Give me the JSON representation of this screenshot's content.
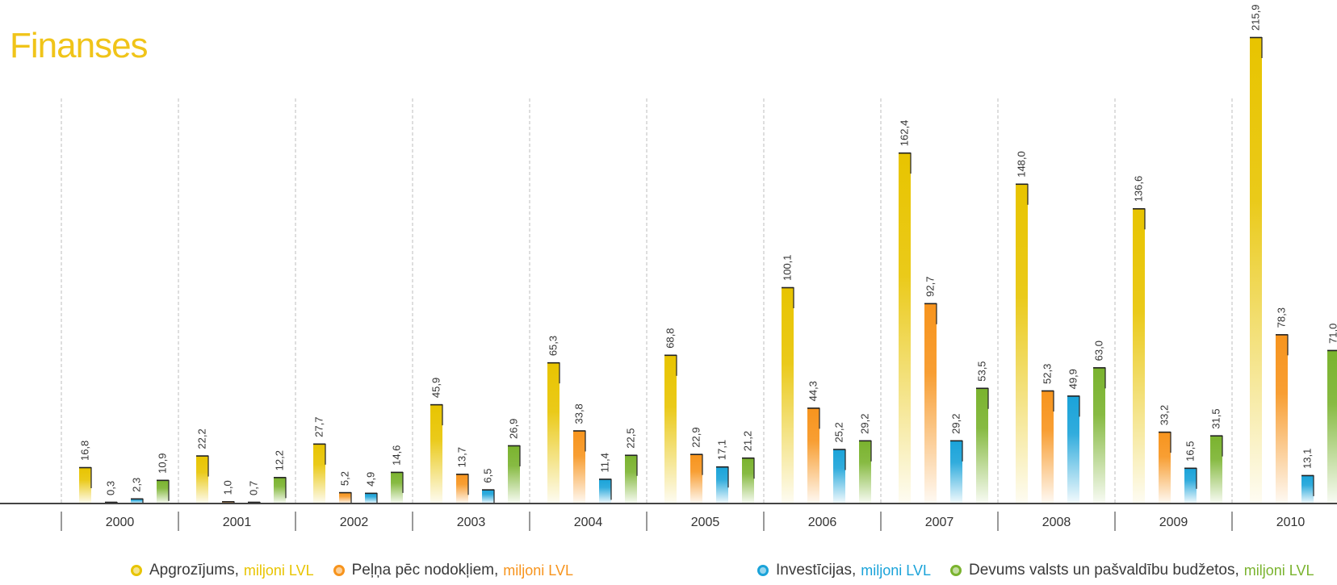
{
  "title": "Finanses",
  "chart_data": {
    "type": "bar",
    "categories": [
      "2000",
      "2001",
      "2002",
      "2003",
      "2004",
      "2005",
      "2006",
      "2007",
      "2008",
      "2009",
      "2010"
    ],
    "series": [
      {
        "name": "Apgrozījums",
        "color": "#e8c400",
        "values": [
          16.8,
          22.2,
          27.7,
          45.9,
          65.3,
          68.8,
          100.1,
          162.4,
          148.0,
          136.6,
          215.9
        ],
        "labels": [
          "16,8",
          "22,2",
          "27,7",
          "45,9",
          "65,3",
          "68,8",
          "100,1",
          "162,4",
          "148,0",
          "136,6",
          "215,9"
        ]
      },
      {
        "name": "Peļņa pēc nodokļiem",
        "color": "#f7941d",
        "values": [
          0.3,
          1.0,
          5.2,
          13.7,
          33.8,
          22.9,
          44.3,
          92.7,
          52.3,
          33.2,
          78.3
        ],
        "labels": [
          "0,3",
          "1,0",
          "5,2",
          "13,7",
          "33,8",
          "22,9",
          "44,3",
          "92,7",
          "52,3",
          "33,2",
          "78,3"
        ]
      },
      {
        "name": "Investīcijas",
        "color": "#1aa3d9",
        "values": [
          2.3,
          0.7,
          4.9,
          6.5,
          11.4,
          17.1,
          25.2,
          29.2,
          49.9,
          16.5,
          13.1
        ],
        "labels": [
          "2,3",
          "0,7",
          "4,9",
          "6,5",
          "11,4",
          "17,1",
          "25,2",
          "29,2",
          "49,9",
          "16,5",
          "13,1"
        ]
      },
      {
        "name": "Devums valsts un pašvaldību budžetos",
        "color": "#7ab32e",
        "values": [
          10.9,
          12.2,
          14.6,
          26.9,
          22.5,
          21.2,
          29.2,
          53.5,
          63.0,
          31.5,
          71.0
        ],
        "labels": [
          "10,9",
          "12,2",
          "14,6",
          "26,9",
          "22,5",
          "21,2",
          "29,2",
          "53,5",
          "63,0",
          "31,5",
          "71,0"
        ]
      }
    ],
    "ylim": [
      0,
      215.9
    ],
    "grid": "vertical dashed separators",
    "legend_position": "bottom"
  },
  "legend": [
    {
      "label": "Apgrozījums,",
      "unit": "miljoni LVL",
      "color": "#e8c400"
    },
    {
      "label": "Peļņa pēc nodokļiem,",
      "unit": "miljoni LVL",
      "color": "#f7941d"
    },
    {
      "label": "Investīcijas,",
      "unit": "miljoni LVL",
      "color": "#1aa3d9"
    },
    {
      "label": "Devums valsts un pašvaldību budžetos,",
      "unit": "miljoni LVL",
      "color": "#7ab32e"
    }
  ]
}
